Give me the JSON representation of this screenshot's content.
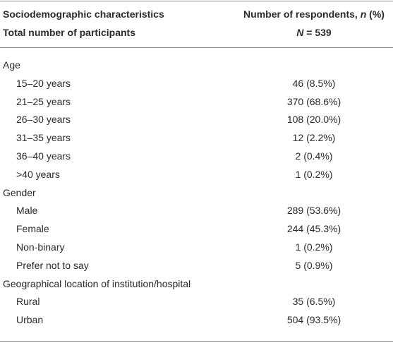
{
  "header": {
    "col1": "Sociodemographic characteristics",
    "col2": {
      "prefix": "Number of respondents, ",
      "italic": "n",
      "suffix": " (%)"
    },
    "total_label": "Total number of participants",
    "total_value": {
      "italic": "N",
      "suffix": " = 539"
    }
  },
  "sections": [
    {
      "title": "Age",
      "rows": [
        [
          "15–20 years",
          "46 (8.5%)"
        ],
        [
          "21–25 years",
          "370 (68.6%)"
        ],
        [
          "26–30 years",
          "108 (20.0%)"
        ],
        [
          "31–35 years",
          "12 (2.2%)"
        ],
        [
          "36–40 years",
          "2 (0.4%)"
        ],
        [
          ">40 years",
          "1 (0.2%)"
        ]
      ]
    },
    {
      "title": "Gender",
      "rows": [
        [
          "Male",
          "289 (53.6%)"
        ],
        [
          "Female",
          "244 (45.3%)"
        ],
        [
          "Non-binary",
          "1 (0.2%)"
        ],
        [
          "Prefer not to say",
          "5 (0.9%)"
        ]
      ]
    },
    {
      "title": "Geographical location of institution/hospital",
      "rows": [
        [
          "Rural",
          "35 (6.5%)"
        ],
        [
          "Urban",
          "504 (93.5%)"
        ]
      ]
    }
  ]
}
